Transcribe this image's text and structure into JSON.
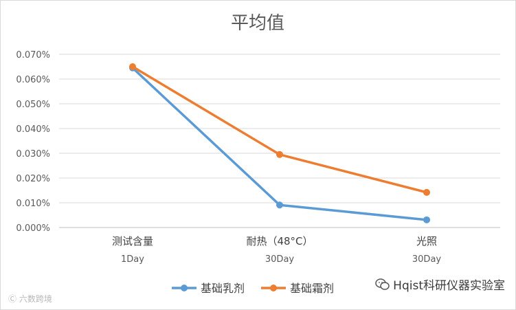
{
  "chart_data": {
    "type": "line",
    "title": "平均值",
    "categories": [
      {
        "line1": "测试含量",
        "line2": "1Day"
      },
      {
        "line1": "耐热（48°C）",
        "line2": "30Day"
      },
      {
        "line1": "光照",
        "line2": "30Day"
      }
    ],
    "y_ticks": [
      "0.000%",
      "0.010%",
      "0.020%",
      "0.030%",
      "0.040%",
      "0.050%",
      "0.060%",
      "0.070%"
    ],
    "ylim": [
      0,
      0.07
    ],
    "grid": true,
    "legend_position": "bottom",
    "series": [
      {
        "name": "基础乳剂",
        "color": "#5b9bd5",
        "values": [
          0.0645,
          0.0091,
          0.0031
        ]
      },
      {
        "name": "基础霜剂",
        "color": "#ed7d31",
        "values": [
          0.065,
          0.0295,
          0.0142
        ]
      }
    ]
  },
  "watermarks": {
    "left": "Ⓒ 六数跨境",
    "right": "Hqist科研仪器实验室",
    "right_icon": "wechat-icon"
  }
}
